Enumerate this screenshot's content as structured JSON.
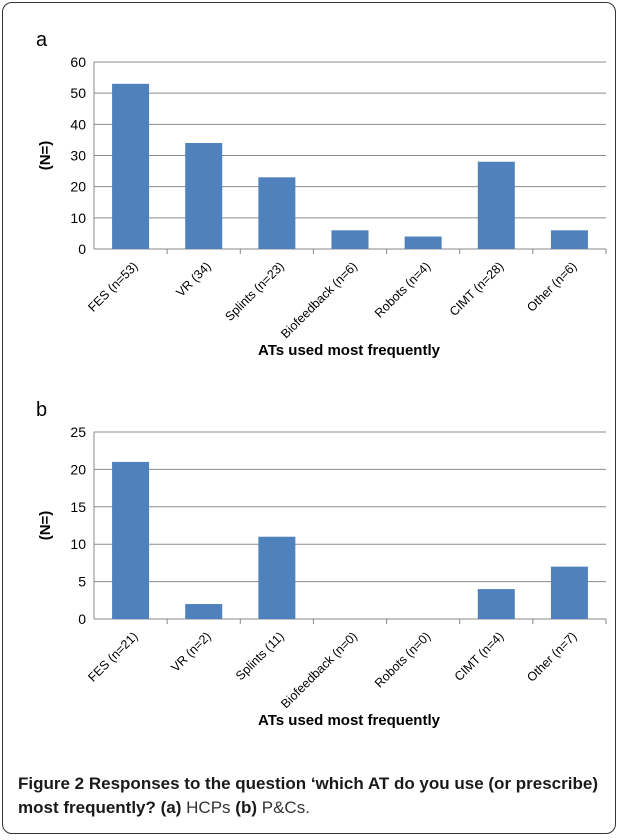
{
  "chart_data": [
    {
      "type": "bar",
      "panel_label": "a",
      "ylabel": "(N=)",
      "xlabel": "ATs used most frequently",
      "categories": [
        "FES (n=53)",
        "VR (34)",
        "Splints (n=23)",
        "Biofeedback (n=6)",
        "Robots (n=4)",
        "CIMT (n=28)",
        "Other (n=6)"
      ],
      "values": [
        53,
        34,
        23,
        6,
        4,
        28,
        6
      ],
      "ylim": [
        0,
        60
      ],
      "yticks": [
        0,
        10,
        20,
        30,
        40,
        50,
        60
      ],
      "grid": true,
      "bar_color": "#4f81bd"
    },
    {
      "type": "bar",
      "panel_label": "b",
      "ylabel": "(N=)",
      "xlabel": "ATs used most frequently",
      "categories": [
        "FES (n=21)",
        "VR (n=2)",
        "Splints (11)",
        "Biofeedback (n=0)",
        "Robots (n=0)",
        "CIMT (n=4)",
        "Other (n=7)"
      ],
      "values": [
        21,
        2,
        11,
        0,
        0,
        4,
        7
      ],
      "ylim": [
        0,
        25
      ],
      "yticks": [
        0,
        5,
        10,
        15,
        20,
        25
      ],
      "grid": true,
      "bar_color": "#4f81bd"
    }
  ],
  "caption": {
    "figure_label": "Figure 2",
    "title": "Responses to the question ‘which AT do you use (or prescribe) most frequently?",
    "part_a_label": "(a)",
    "part_a_text": "HCPs",
    "part_b_label": "(b)",
    "part_b_text": "P&Cs."
  }
}
